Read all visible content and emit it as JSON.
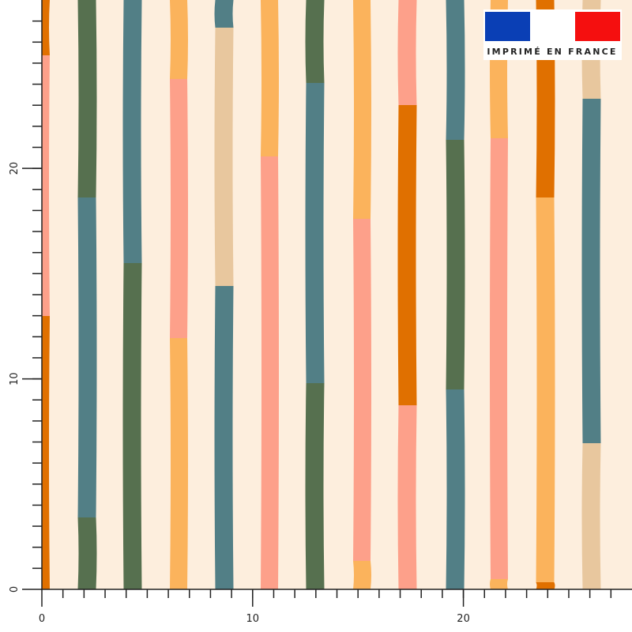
{
  "badge": {
    "text": "IMPRIMÉ EN FRANCE"
  },
  "ruler": {
    "xlim": [
      0,
      28
    ],
    "ylim": [
      0,
      28
    ],
    "xticks": [
      0,
      10,
      20
    ],
    "yticks": [
      0,
      10,
      20
    ]
  }
}
